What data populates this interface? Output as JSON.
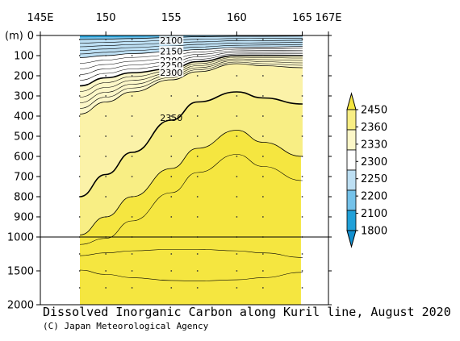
{
  "chart_data": {
    "type": "heatmap",
    "title": "Dissolved Inorganic Carbon along Kuril line, August 2020",
    "credit": "(C) Japan Meteorological Agency",
    "x_unit": "longitude (°E)",
    "x_ticks": [
      "145E",
      "150",
      "155",
      "160",
      "165",
      "167E"
    ],
    "x_tick_values": [
      145,
      150,
      155,
      160,
      165,
      167
    ],
    "xlim": [
      145,
      167
    ],
    "data_extent_x": [
      147.9,
      164.9
    ],
    "y_unit_label": "(m)",
    "y_ticks": [
      "0",
      "100",
      "200",
      "300",
      "400",
      "500",
      "600",
      "700",
      "800",
      "900",
      "1000",
      "1500",
      "2000"
    ],
    "y_tick_values": [
      0,
      100,
      200,
      300,
      400,
      500,
      600,
      700,
      800,
      900,
      1000,
      1500,
      2000
    ],
    "y_scale": "linear 0-1000 m, compressed 1000-2000 m",
    "ylim": [
      0,
      2000
    ],
    "contour_labels": [
      {
        "text": "2100",
        "lon": 155,
        "depth": 25
      },
      {
        "text": "2150",
        "lon": 155,
        "depth": 80
      },
      {
        "text": "2200",
        "lon": 155,
        "depth": 125
      },
      {
        "text": "2250",
        "lon": 155,
        "depth": 150
      },
      {
        "text": "2300",
        "lon": 155,
        "depth": 185
      },
      {
        "text": "2350",
        "lon": 155,
        "depth": 410
      }
    ],
    "colorbar": {
      "levels": [
        "2450",
        "2360",
        "2330",
        "2300",
        "2250",
        "2200",
        "2100",
        "1800"
      ],
      "colors": [
        "#f5e640",
        "#f8ee84",
        "#fcf7c8",
        "#ffffff",
        "#bddff3",
        "#74c2ea",
        "#20a0d8"
      ],
      "extend": "both"
    },
    "section_profile": [
      {
        "lon": 148,
        "d2100": 20,
        "d2200": 110,
        "d2300": 250,
        "d2330": 390,
        "d2350": 800,
        "d2360": 990
      },
      {
        "lon": 150,
        "d2100": 18,
        "d2200": 100,
        "d2300": 210,
        "d2330": 330,
        "d2350": 690,
        "d2360": 900
      },
      {
        "lon": 152,
        "d2100": 15,
        "d2200": 90,
        "d2300": 185,
        "d2330": 280,
        "d2350": 580,
        "d2360": 800
      },
      {
        "lon": 155,
        "d2100": 10,
        "d2200": 80,
        "d2300": 165,
        "d2330": 220,
        "d2350": 420,
        "d2360": 660
      },
      {
        "lon": 157,
        "d2100": 6,
        "d2200": 70,
        "d2300": 130,
        "d2330": 180,
        "d2350": 330,
        "d2360": 560
      },
      {
        "lon": 160,
        "d2100": 4,
        "d2200": 60,
        "d2300": 100,
        "d2330": 140,
        "d2350": 280,
        "d2360": 470
      },
      {
        "lon": 162,
        "d2100": 4,
        "d2200": 58,
        "d2300": 100,
        "d2330": 150,
        "d2350": 310,
        "d2360": 530
      },
      {
        "lon": 165,
        "d2100": 3,
        "d2200": 55,
        "d2300": 100,
        "d2330": 160,
        "d2350": 340,
        "d2360": 600
      }
    ],
    "stations_lon": [
      148,
      150,
      152,
      155,
      157,
      160,
      162,
      165
    ]
  }
}
